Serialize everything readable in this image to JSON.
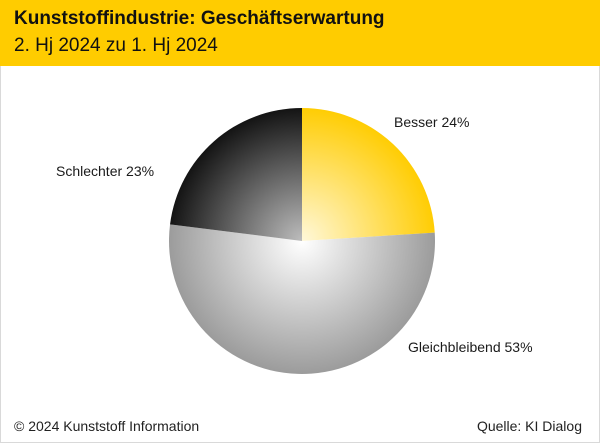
{
  "header": {
    "title": "Kunststoffindustrie: Geschäftserwartung",
    "subtitle": "2. Hj 2024 zu 1. Hj 2024"
  },
  "chart_data": {
    "type": "pie",
    "slices": [
      {
        "name": "Besser",
        "value": 24,
        "label": "Besser 24%",
        "color": "#ffcc00"
      },
      {
        "name": "Gleichbleibend",
        "value": 53,
        "label": "Gleichbleibend 53%",
        "color": "#9a9a9a"
      },
      {
        "name": "Schlechter",
        "value": 23,
        "label": "Schlechter 23%",
        "color": "#111111"
      }
    ],
    "title": "",
    "legend": "none"
  },
  "footer": {
    "copyright": "© 2024 Kunststoff Information",
    "source": "Quelle: KI Dialog"
  },
  "colors": {
    "accent": "#ffcc00",
    "dark": "#111111",
    "neutral": "#9a9a9a"
  }
}
